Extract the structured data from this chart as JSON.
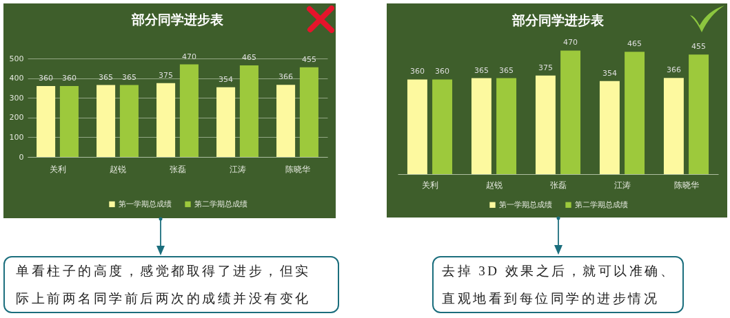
{
  "chart_data": [
    {
      "type": "bar",
      "title": "部分同学进步表",
      "categories": [
        "关利",
        "赵锐",
        "张磊",
        "江涛",
        "陈晓华"
      ],
      "series": [
        {
          "name": "第一学期总成绩",
          "color": "#fdf99f",
          "values": [
            360,
            365,
            375,
            354,
            366
          ]
        },
        {
          "name": "第二学期总成绩",
          "color": "#9dc93c",
          "values": [
            360,
            365,
            470,
            465,
            455
          ]
        }
      ],
      "ylim": [
        0,
        500
      ],
      "yticks": [
        0,
        100,
        200,
        300,
        400,
        500
      ],
      "grid": "y",
      "legend": "bottom",
      "data_labels": true,
      "annotations": [
        "单看柱子的高度，感觉都取得了进步，但实际上前两名同学前后两次的成绩并没有变化"
      ]
    },
    {
      "type": "bar",
      "title": "部分同学进步表",
      "categories": [
        "关利",
        "赵锐",
        "张磊",
        "江涛",
        "陈晓华"
      ],
      "series": [
        {
          "name": "第一学期总成绩",
          "color": "#fdf99f",
          "values": [
            360,
            365,
            375,
            354,
            366
          ]
        },
        {
          "name": "第二学期总成绩",
          "color": "#9dc93c",
          "values": [
            360,
            365,
            470,
            465,
            455
          ]
        }
      ],
      "tick_labels": "x",
      "legend": "bottom",
      "data_labels": true,
      "annotations": [
        "去掉 3D 效果之后，就可以准确、直观地看到每位同学的进步情况"
      ]
    }
  ]
}
